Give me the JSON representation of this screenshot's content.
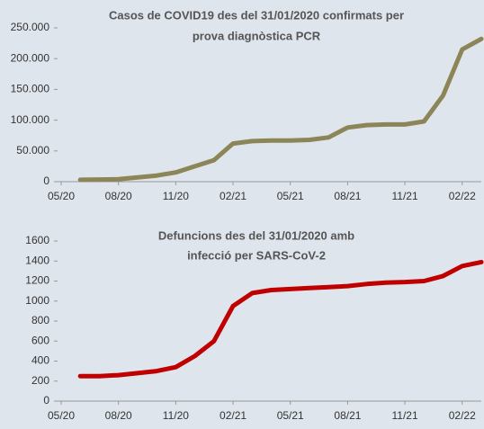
{
  "chart_data": [
    {
      "type": "line",
      "title": [
        "Casos de COVID19 des del 31/01/2020 confirmats per",
        "prova diagnòstica  PCR"
      ],
      "x": [
        "06/20",
        "07/20",
        "08/20",
        "09/20",
        "10/20",
        "11/20",
        "12/20",
        "01/21",
        "02/21",
        "03/21",
        "04/21",
        "05/21",
        "06/21",
        "07/21",
        "08/21",
        "09/21",
        "10/21",
        "11/21",
        "12/21",
        "01/22",
        "02/22",
        "03/22"
      ],
      "series": [
        {
          "color": "#8c8557",
          "values": [
            3000,
            3500,
            4000,
            7000,
            10000,
            15000,
            25000,
            35000,
            62000,
            66000,
            67000,
            67000,
            68000,
            72000,
            88000,
            92000,
            93000,
            93000,
            98000,
            140000,
            215000,
            232000
          ]
        }
      ],
      "xlim": [
        "05/20",
        "03/22"
      ],
      "xticks": [
        "05/20",
        "08/20",
        "11/20",
        "02/21",
        "05/21",
        "08/21",
        "11/21",
        "02/22"
      ],
      "ylim": [
        0,
        250000
      ],
      "yticks": [
        0,
        {
          "value": 50000,
          "label": "50.000"
        },
        {
          "value": 100000,
          "label": "100.000"
        },
        {
          "value": 150000,
          "label": "150.000"
        },
        {
          "value": 200000,
          "label": "200.000"
        },
        {
          "value": 250000,
          "label": "250.000"
        }
      ]
    },
    {
      "type": "line",
      "title": [
        "Defuncions des del 31/01/2020 amb",
        "infecció per SARS-CoV-2"
      ],
      "x": [
        "06/20",
        "07/20",
        "08/20",
        "09/20",
        "10/20",
        "11/20",
        "12/20",
        "01/21",
        "02/21",
        "03/21",
        "04/21",
        "05/21",
        "06/21",
        "07/21",
        "08/21",
        "09/21",
        "10/21",
        "11/21",
        "12/21",
        "01/22",
        "02/22",
        "03/22"
      ],
      "series": [
        {
          "color": "#c00000",
          "values": [
            250,
            250,
            260,
            280,
            300,
            340,
            450,
            600,
            950,
            1080,
            1110,
            1120,
            1130,
            1140,
            1150,
            1170,
            1185,
            1190,
            1200,
            1250,
            1350,
            1390
          ]
        }
      ],
      "xlim": [
        "05/20",
        "03/22"
      ],
      "xticks": [
        "05/20",
        "08/20",
        "11/20",
        "02/21",
        "05/21",
        "08/21",
        "11/21",
        "02/22"
      ],
      "ylim": [
        0,
        1600
      ],
      "yticks": [
        0,
        200,
        400,
        600,
        800,
        1000,
        1200,
        1400,
        1600
      ]
    }
  ]
}
